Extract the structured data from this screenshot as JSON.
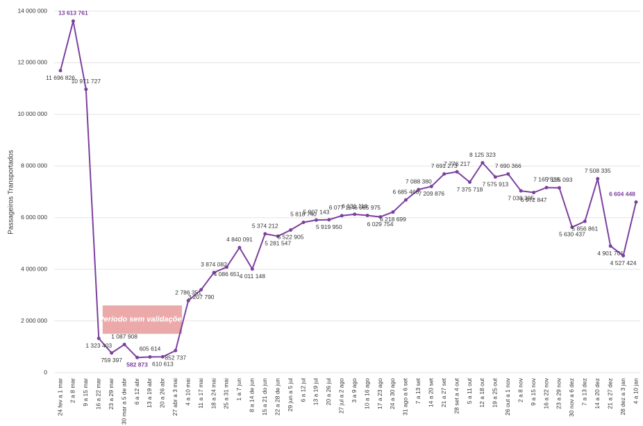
{
  "chart_data": {
    "type": "line",
    "y_label": "Passageiros Transportados",
    "annotation": "Período sem validações",
    "categories": [
      "24 fev a 1 mar",
      "2 a 8 mar",
      "9 a 15 mar",
      "16 a 22 mar",
      "23 a 29 mar",
      "30 mar a 5 de abr",
      "6 a 12 abr",
      "13 a 19 abr",
      "20 a 26 abr",
      "27 abr a 3 mai",
      "4 a 10 mai",
      "11 a 17 mai",
      "18 a 24 mai",
      "25 a 31 mai",
      "1 a 7 jun",
      "8 a 14 de jun",
      "15 a 21 do jun",
      "22 a 28 de jun",
      "29 jun a 5 jul",
      "6 a 12 jul",
      "13 a 19 jul",
      "20 a 26 jul",
      "27 jul a 2 ago",
      "3 a 9 ago",
      "10 a 16 ago",
      "17 a 23 ago",
      "24 a 30 ago",
      "31 ago a 6 set",
      "7 a 13 set",
      "14 a 20 set",
      "21 a 27 set",
      "28 set a 4 out",
      "5 a 11 out",
      "12 a 18 out",
      "19 a 25 out",
      "26 out a 1 nov",
      "2 a 8 nov",
      "9 a 15 nov",
      "16 a 22 nov",
      "23 a 29 nov",
      "30 nov a 6 dez",
      "7 a 13 dez",
      "14 a 20 dez",
      "21 a 27 dez",
      "28 dez a 3 jan",
      "4 a 10 jan"
    ],
    "series": [
      {
        "name": "Passageiros Transportados",
        "color": "#7b3f9e",
        "values": [
          11696826,
          13613761,
          10971727,
          1323403,
          759397,
          1087908,
          582873,
          605614,
          610613,
          852737,
          2786351,
          3207790,
          3874082,
          4086651,
          4840091,
          4011148,
          5374212,
          5281547,
          5522905,
          5818740,
          5907143,
          5919950,
          6077114,
          6131116,
          6085975,
          6029754,
          6218699,
          6685468,
          7088380,
          7209876,
          7691273,
          7776217,
          7375718,
          8125323,
          7575913,
          7690366,
          7038395,
          6972847,
          7165516,
          7155093,
          5630437,
          5856861,
          7508335,
          4901701,
          4527424,
          6604448
        ],
        "value_labels": [
          "11 696 826",
          "13 613 761",
          "10 971 727",
          "1 323 403",
          "759 397",
          "1 087 908",
          "582 873",
          "605 614",
          "610 613",
          "852 737",
          "2 786 351",
          "3 207 790",
          "3 874 082",
          "4 086 651",
          "4 840 091",
          "4 011 148",
          "5 374 212",
          "5 281 547",
          "5 522 905",
          "5 818 740",
          "5 907 143",
          "5 919 950",
          "6 077 114",
          "6 131 116",
          "6 085 975",
          "6 029 754",
          "6 218 699",
          "6 685 468",
          "7 088 380",
          "7 209 876",
          "7 691 273",
          "7 776 217",
          "7 375 718",
          "8 125 323",
          "7 575 913",
          "7 690 366",
          "7 038 395",
          "6 972 847",
          "7 165 516",
          "7 155 093",
          "5 630 437",
          "5 856 861",
          "7 508 335",
          "4 901 701",
          "4 527 424",
          "6 604 448"
        ]
      }
    ],
    "ylim": [
      0,
      14000000
    ],
    "yticks": [
      {
        "value": 0,
        "label": "0"
      },
      {
        "value": 2000000,
        "label": "2 000 000"
      },
      {
        "value": 4000000,
        "label": "4 000 000"
      },
      {
        "value": 6000000,
        "label": "6 000 000"
      },
      {
        "value": 8000000,
        "label": "8 000 000"
      },
      {
        "value": 10000000,
        "label": "10 000 000"
      },
      {
        "value": 12000000,
        "label": "12 000 000"
      },
      {
        "value": 14000000,
        "label": "14 000 000"
      }
    ],
    "grid": true
  }
}
